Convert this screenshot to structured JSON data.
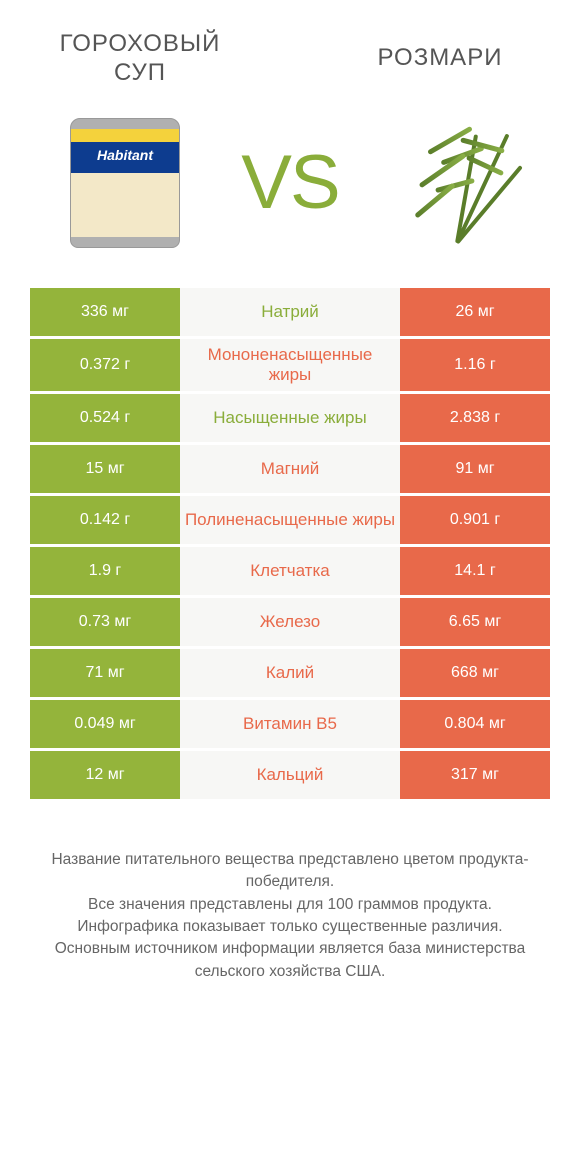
{
  "colors": {
    "green": "#94b43b",
    "orange": "#e8694a",
    "label_green": "#8aad3a",
    "label_orange": "#e8694a",
    "row_bg": "#f7f7f5"
  },
  "header": {
    "left_title": "ГОРОХОВЫЙ СУП",
    "right_title": "РОЗМАРИ",
    "vs": "VS"
  },
  "rows": [
    {
      "left": "336 мг",
      "label": "Натрий",
      "right": "26 мг",
      "winner": "left"
    },
    {
      "left": "0.372 г",
      "label": "Мононенасыщенные жиры",
      "right": "1.16 г",
      "winner": "right"
    },
    {
      "left": "0.524 г",
      "label": "Насыщенные жиры",
      "right": "2.838 г",
      "winner": "left"
    },
    {
      "left": "15 мг",
      "label": "Магний",
      "right": "91 мг",
      "winner": "right"
    },
    {
      "left": "0.142 г",
      "label": "Полиненасыщенные жиры",
      "right": "0.901 г",
      "winner": "right"
    },
    {
      "left": "1.9 г",
      "label": "Клетчатка",
      "right": "14.1 г",
      "winner": "right"
    },
    {
      "left": "0.73 мг",
      "label": "Железо",
      "right": "6.65 мг",
      "winner": "right"
    },
    {
      "left": "71 мг",
      "label": "Калий",
      "right": "668 мг",
      "winner": "right"
    },
    {
      "left": "0.049 мг",
      "label": "Витамин B5",
      "right": "0.804 мг",
      "winner": "right"
    },
    {
      "left": "12 мг",
      "label": "Кальций",
      "right": "317 мг",
      "winner": "right"
    }
  ],
  "footnote": {
    "l1": "Название питательного вещества представлено цветом продукта-победителя.",
    "l2": "Все значения представлены для 100 граммов продукта.",
    "l3": "Инфографика показывает только существенные различия.",
    "l4": "Основным источником информации является база министерства сельского хозяйства США."
  }
}
